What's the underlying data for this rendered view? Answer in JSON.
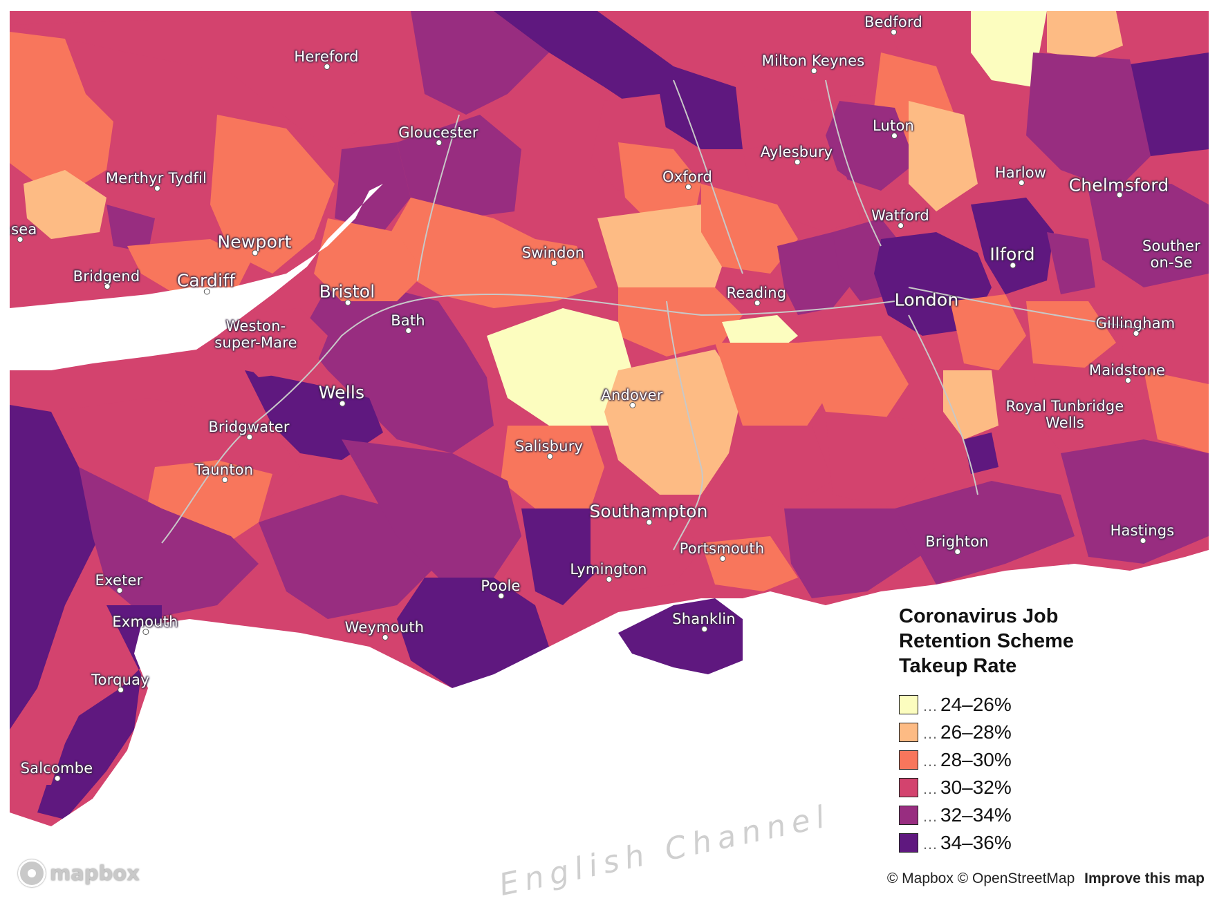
{
  "map": {
    "colors": {
      "band_24_26": "#fcfdbf",
      "band_26_28": "#fdbb84",
      "band_28_30": "#f8765c",
      "band_30_32": "#d3436e",
      "band_32_34": "#982d80",
      "band_34_36": "#5f187f",
      "sea": "#ffffff",
      "roads": "#c8c8c8"
    },
    "places": [
      {
        "id": "hereford",
        "name": "Hereford"
      },
      {
        "id": "bedford",
        "name": "Bedford"
      },
      {
        "id": "milton-keynes",
        "name": "Milton Keynes"
      },
      {
        "id": "gloucester",
        "name": "Gloucester"
      },
      {
        "id": "luton",
        "name": "Luton"
      },
      {
        "id": "aylesbury",
        "name": "Aylesbury"
      },
      {
        "id": "merthyr-tydfil",
        "name": "Merthyr Tydfil"
      },
      {
        "id": "oxford",
        "name": "Oxford"
      },
      {
        "id": "harlow",
        "name": "Harlow"
      },
      {
        "id": "chelmsford",
        "name": "Chelmsford"
      },
      {
        "id": "swansea",
        "name": "nsea"
      },
      {
        "id": "watford",
        "name": "Watford"
      },
      {
        "id": "newport",
        "name": "Newport"
      },
      {
        "id": "swindon",
        "name": "Swindon"
      },
      {
        "id": "ilford",
        "name": "Ilford"
      },
      {
        "id": "southend-on-sea",
        "name": "Southend-on-Sea",
        "lines": [
          "Souther",
          "on-Se"
        ]
      },
      {
        "id": "bridgend",
        "name": "Bridgend"
      },
      {
        "id": "cardiff",
        "name": "Cardiff"
      },
      {
        "id": "bristol",
        "name": "Bristol"
      },
      {
        "id": "reading",
        "name": "Reading"
      },
      {
        "id": "london",
        "name": "London"
      },
      {
        "id": "weston-super-mare",
        "name": "Weston-super-Mare",
        "lines": [
          "Weston-",
          "super-Mare"
        ]
      },
      {
        "id": "bath",
        "name": "Bath"
      },
      {
        "id": "gillingham",
        "name": "Gillingham"
      },
      {
        "id": "maidstone",
        "name": "Maidstone"
      },
      {
        "id": "wells",
        "name": "Wells"
      },
      {
        "id": "andover",
        "name": "Andover"
      },
      {
        "id": "royal-tunbridge-wells",
        "name": "Royal Tunbridge Wells",
        "lines": [
          "Royal Tunbridge",
          "Wells"
        ]
      },
      {
        "id": "bridgwater",
        "name": "Bridgwater"
      },
      {
        "id": "salisbury",
        "name": "Salisbury"
      },
      {
        "id": "taunton",
        "name": "Taunton"
      },
      {
        "id": "southampton",
        "name": "Southampton"
      },
      {
        "id": "hastings",
        "name": "Hastings"
      },
      {
        "id": "portsmouth",
        "name": "Portsmouth"
      },
      {
        "id": "brighton",
        "name": "Brighton"
      },
      {
        "id": "lymington",
        "name": "Lymington"
      },
      {
        "id": "exeter",
        "name": "Exeter"
      },
      {
        "id": "poole",
        "name": "Poole"
      },
      {
        "id": "shanklin",
        "name": "Shanklin"
      },
      {
        "id": "exmouth",
        "name": "Exmouth"
      },
      {
        "id": "weymouth",
        "name": "Weymouth"
      },
      {
        "id": "torquay",
        "name": "Torquay"
      },
      {
        "id": "salcombe",
        "name": "Salcombe"
      }
    ],
    "sea_label": "English Channel"
  },
  "legend": {
    "title": "Coronavirus Job Retention Scheme Takeup Rate",
    "items": [
      {
        "label": "24–26%",
        "color": "#fcfdbf"
      },
      {
        "label": "26–28%",
        "color": "#fdbb84"
      },
      {
        "label": "28–30%",
        "color": "#f8765c"
      },
      {
        "label": "30–32%",
        "color": "#d3436e"
      },
      {
        "label": "32–34%",
        "color": "#982d80"
      },
      {
        "label": "34–36%",
        "color": "#5f187f"
      }
    ],
    "leader": "…"
  },
  "footer": {
    "logo_text": "mapbox",
    "attribution": "© Mapbox © OpenStreetMap",
    "improve_link": "Improve this map"
  }
}
